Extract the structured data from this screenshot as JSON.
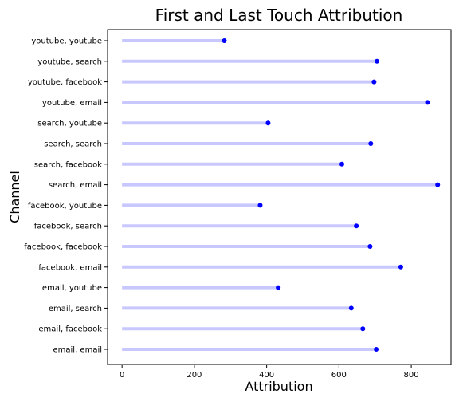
{
  "chart_data": {
    "type": "lollipop",
    "orientation": "horizontal",
    "title": "First and Last Touch Attribution",
    "xlabel": "Attribution",
    "ylabel": "Channel",
    "xlim": [
      -40,
      910
    ],
    "xticks": [
      0,
      200,
      400,
      600,
      800
    ],
    "grid": false,
    "stem_color": "#c8c8ff",
    "marker_color": "#0000ff",
    "categories": [
      "youtube, youtube",
      "youtube, search",
      "youtube, facebook",
      "youtube, email",
      "search, youtube",
      "search, search",
      "search, facebook",
      "search, email",
      "facebook, youtube",
      "facebook, search",
      "facebook, facebook",
      "facebook, email",
      "email, youtube",
      "email, search",
      "email, facebook",
      "email, email"
    ],
    "values": [
      283,
      705,
      697,
      845,
      404,
      688,
      608,
      873,
      382,
      648,
      686,
      771,
      432,
      634,
      666,
      703
    ]
  }
}
